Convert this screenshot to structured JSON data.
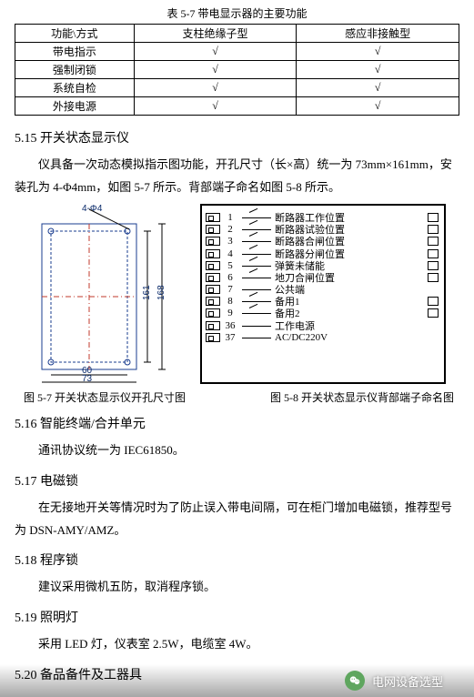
{
  "table": {
    "caption": "表 5-7  带电显示器的主要功能",
    "headers": [
      "功能\\方式",
      "支柱绝缘子型",
      "感应非接触型"
    ],
    "rows": [
      [
        "带电指示",
        "√",
        "√"
      ],
      [
        "强制闭锁",
        "√",
        "√"
      ],
      [
        "系统自检",
        "√",
        "√"
      ],
      [
        "外接电源",
        "√",
        "√"
      ]
    ]
  },
  "sections": [
    {
      "num": "5.15",
      "title": "开关状态显示仪",
      "paras": [
        "仪具备一次动态模拟指示图功能，开孔尺寸（长×高）统一为 73mm×161mm，安装孔为 4-Φ4mm，如图 5-7 所示。背部端子命名如图 5-8 所示。"
      ]
    },
    {
      "num": "5.16",
      "title": "智能终端/合并单元",
      "paras": [
        "通讯协议统一为 IEC61850。"
      ]
    },
    {
      "num": "5.17",
      "title": "电磁锁",
      "paras": [
        "在无接地开关等情况时为了防止误入带电间隔，可在柜门增加电磁锁，推荐型号为 DSN-AMY/AMZ。"
      ]
    },
    {
      "num": "5.18",
      "title": "程序锁",
      "paras": [
        "建议采用微机五防，取消程序锁。"
      ]
    },
    {
      "num": "5.19",
      "title": "照明灯",
      "paras": [
        "采用 LED 灯，仪表室 2.5W，电缆室 4W。"
      ]
    },
    {
      "num": "5.20",
      "title": "备品备件及工器具",
      "paras": []
    }
  ],
  "fig_left": {
    "caption": "图 5-7  开关状态显示仪开孔尺寸图",
    "dims": {
      "hole_note": "4-Φ4",
      "w_inner": "60",
      "w_outer": "73",
      "h_inner": "161",
      "h_outer": "168"
    },
    "colors": {
      "outline": "#1a3d8f",
      "center": "#c0392b"
    }
  },
  "fig_right": {
    "caption": "图 5-8  开关状态显示仪背部端子命名图",
    "terminals": [
      {
        "n": "1",
        "sym": "sw",
        "label": "断路器工作位置",
        "box": true
      },
      {
        "n": "2",
        "sym": "sw",
        "label": "断路器试验位置",
        "box": true
      },
      {
        "n": "3",
        "sym": "sw",
        "label": "断路器合闸位置",
        "box": true
      },
      {
        "n": "4",
        "sym": "sw",
        "label": "断路器分闸位置",
        "box": true
      },
      {
        "n": "5",
        "sym": "sw",
        "label": "弹簧未储能",
        "box": true
      },
      {
        "n": "6",
        "sym": "sw",
        "label": "地刀合闸位置",
        "box": true
      },
      {
        "n": "7",
        "sym": "ln",
        "label": "公共端",
        "box": false
      },
      {
        "n": "8",
        "sym": "sw",
        "label": "备用1",
        "box": true
      },
      {
        "n": "9",
        "sym": "sw",
        "label": "备用2",
        "box": true
      },
      {
        "n": "36",
        "sym": "ln",
        "label": "工作电源",
        "box": false
      },
      {
        "n": "37",
        "sym": "ln",
        "label": "AC/DC220V",
        "box": false
      }
    ]
  },
  "footer": {
    "text": "电网设备选型"
  }
}
